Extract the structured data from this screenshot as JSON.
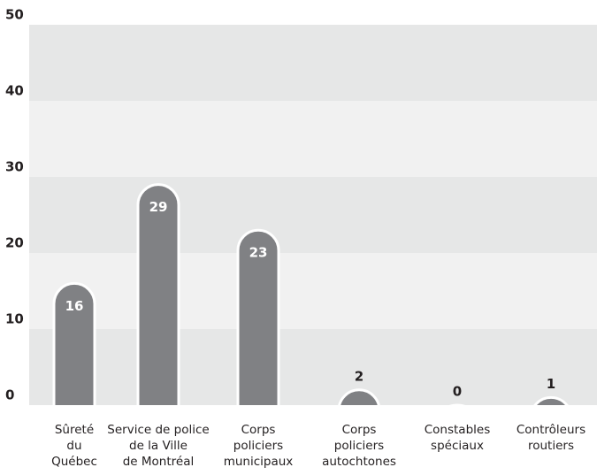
{
  "chart_data": {
    "type": "bar",
    "categories": [
      [
        "Sûreté",
        "du",
        "Québec"
      ],
      [
        "Service de police",
        "de la Ville",
        "de Montréal"
      ],
      [
        "Corps",
        "policiers",
        "municipaux"
      ],
      [
        "Corps",
        "policiers",
        "autochtones"
      ],
      [
        "Constables",
        "spéciaux"
      ],
      [
        "Contrôleurs",
        "routiers"
      ]
    ],
    "values": [
      16,
      29,
      23,
      2,
      0,
      1
    ],
    "color": "#808184",
    "ylim": [
      0,
      50
    ],
    "yticks": [
      0,
      10,
      20,
      30,
      40,
      50
    ],
    "band_colors": [
      "#e6e7e7",
      "#f1f1f1"
    ]
  }
}
